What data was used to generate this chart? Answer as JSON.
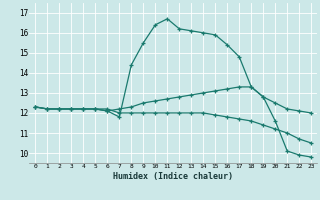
{
  "xlabel": "Humidex (Indice chaleur)",
  "bg_color": "#cce8e8",
  "line_color": "#1a7a6e",
  "grid_color": "#ffffff",
  "xlim": [
    -0.5,
    23.5
  ],
  "ylim": [
    9.5,
    17.5
  ],
  "yticks": [
    10,
    11,
    12,
    13,
    14,
    15,
    16,
    17
  ],
  "xticks": [
    0,
    1,
    2,
    3,
    4,
    5,
    6,
    7,
    8,
    9,
    10,
    11,
    12,
    13,
    14,
    15,
    16,
    17,
    18,
    19,
    20,
    21,
    22,
    23
  ],
  "series": [
    {
      "x": [
        0,
        1,
        2,
        3,
        4,
        5,
        6,
        7,
        8,
        9,
        10,
        11,
        12,
        13,
        14,
        15,
        16,
        17,
        18,
        19,
        20,
        21,
        22,
        23
      ],
      "y": [
        12.3,
        12.2,
        12.2,
        12.2,
        12.2,
        12.2,
        12.1,
        11.8,
        14.4,
        15.5,
        16.4,
        16.7,
        16.2,
        16.1,
        16.0,
        15.9,
        15.4,
        14.8,
        13.3,
        12.8,
        11.6,
        10.1,
        9.9,
        9.8
      ]
    },
    {
      "x": [
        0,
        1,
        2,
        3,
        4,
        5,
        6,
        7,
        8,
        9,
        10,
        11,
        12,
        13,
        14,
        15,
        16,
        17,
        18,
        19,
        20,
        21,
        22,
        23
      ],
      "y": [
        12.3,
        12.2,
        12.2,
        12.2,
        12.2,
        12.2,
        12.1,
        12.2,
        12.3,
        12.5,
        12.6,
        12.7,
        12.8,
        12.9,
        13.0,
        13.1,
        13.2,
        13.3,
        13.3,
        12.8,
        12.5,
        12.2,
        12.1,
        12.0
      ]
    },
    {
      "x": [
        0,
        1,
        2,
        3,
        4,
        5,
        6,
        7,
        8,
        9,
        10,
        11,
        12,
        13,
        14,
        15,
        16,
        17,
        18,
        19,
        20,
        21,
        22,
        23
      ],
      "y": [
        12.3,
        12.2,
        12.2,
        12.2,
        12.2,
        12.2,
        12.2,
        12.0,
        12.0,
        12.0,
        12.0,
        12.0,
        12.0,
        12.0,
        12.0,
        11.9,
        11.8,
        11.7,
        11.6,
        11.4,
        11.2,
        11.0,
        10.7,
        10.5
      ]
    }
  ]
}
